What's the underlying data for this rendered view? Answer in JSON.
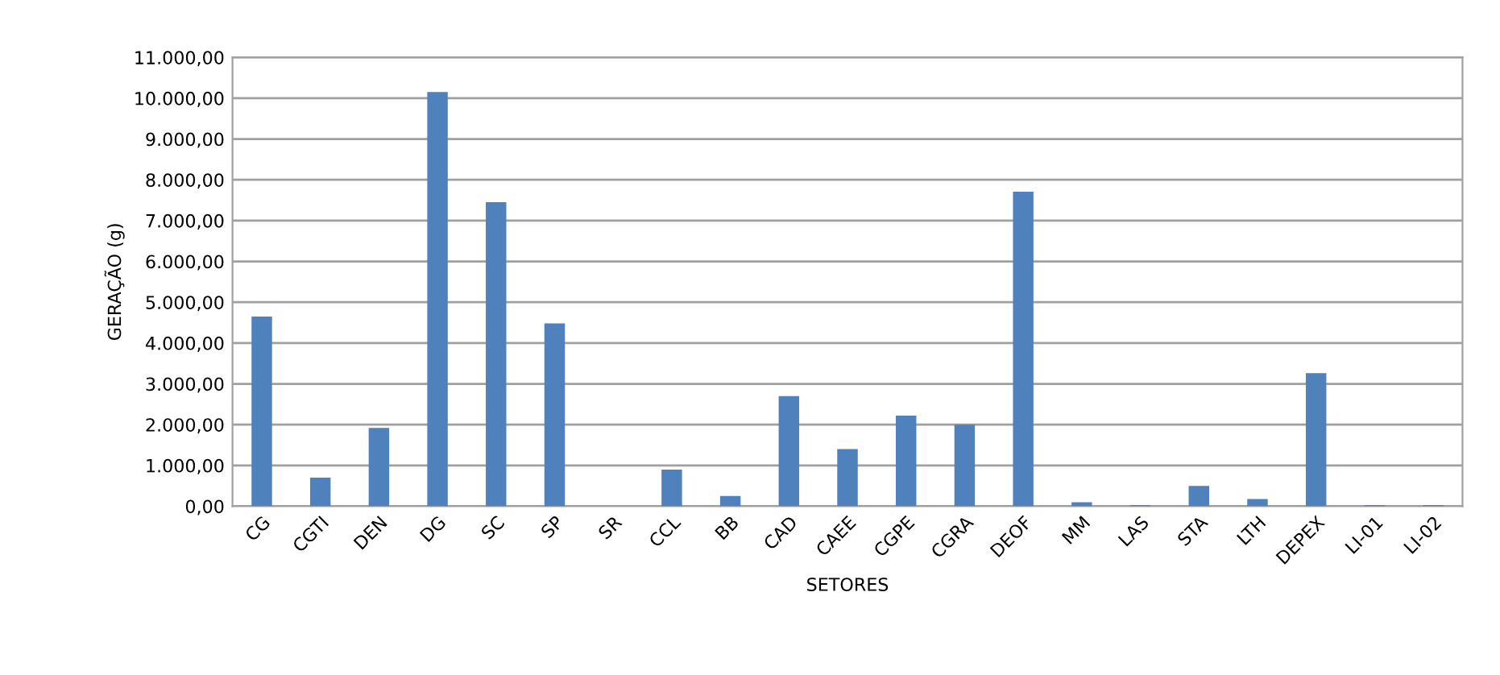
{
  "chart_data": {
    "type": "bar",
    "xlabel": "SETORES",
    "ylabel": "GERAÇÃO (g)",
    "categories": [
      "CG",
      "CGTI",
      "DEN",
      "DG",
      "SC",
      "SP",
      "SR",
      "CCL",
      "BB",
      "CAD",
      "CAEE",
      "CGPE",
      "CGRA",
      "DEOF",
      "MM",
      "LAS",
      "STA",
      "LTH",
      "DEPEX",
      "LI-01",
      "LI-02"
    ],
    "values": [
      4650,
      700,
      1920,
      10150,
      7450,
      4480,
      0,
      900,
      250,
      2700,
      1400,
      2220,
      2000,
      7710,
      100,
      30,
      500,
      180,
      3260,
      30,
      30
    ],
    "color": "#4f81bd",
    "ylim": [
      0,
      11000
    ],
    "yticks": [
      {
        "value": 0,
        "label": "0,00"
      },
      {
        "value": 1000,
        "label": "1.000,00"
      },
      {
        "value": 2000,
        "label": "2.000,00"
      },
      {
        "value": 3000,
        "label": "3.000,00"
      },
      {
        "value": 4000,
        "label": "4.000,00"
      },
      {
        "value": 5000,
        "label": "5.000,00"
      },
      {
        "value": 6000,
        "label": "6.000,00"
      },
      {
        "value": 7000,
        "label": "7.000,00"
      },
      {
        "value": 8000,
        "label": "8.000,00"
      },
      {
        "value": 9000,
        "label": "9.000,00"
      },
      {
        "value": 10000,
        "label": "10.000,00"
      },
      {
        "value": 11000,
        "label": "11.000,00"
      }
    ],
    "grid": "y"
  }
}
